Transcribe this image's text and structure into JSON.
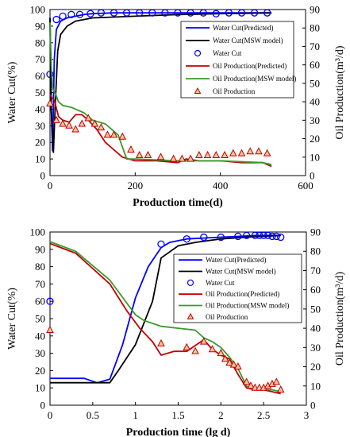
{
  "chart_data": [
    {
      "type": "line",
      "xlabel": "Production time(d)",
      "ylabel_left": "Water Cut(%)",
      "ylabel_right": "Oil Production(m³/d)",
      "xlim": [
        0,
        600
      ],
      "ylim_left": [
        0,
        100
      ],
      "ylim_right": [
        0,
        90
      ],
      "x_ticks": [
        "0",
        "200",
        "400",
        "600"
      ],
      "y_left_ticks": [
        "0",
        "10",
        "20",
        "30",
        "40",
        "50",
        "60",
        "70",
        "80",
        "90",
        "100"
      ],
      "y_right_ticks": [
        "0",
        "10",
        "20",
        "30",
        "40",
        "50",
        "60",
        "70",
        "80",
        "90"
      ],
      "legend_position": "top-right",
      "series": [
        {
          "name": "Water Cut(Predicted)",
          "axis": "left",
          "style": "line",
          "color": "#0000ff",
          "x": [
            0,
            3,
            6,
            10,
            15,
            25,
            40,
            60,
            80,
            100,
            150,
            200,
            300,
            400,
            500,
            520
          ],
          "y": [
            95,
            40,
            15,
            70,
            88,
            93,
            95,
            96,
            97,
            97.5,
            98,
            98,
            98,
            98,
            98,
            98
          ]
        },
        {
          "name": "Water Cut(MSW model)",
          "axis": "left",
          "style": "line",
          "color": "#000000",
          "x": [
            0,
            3,
            8,
            12,
            18,
            25,
            40,
            60,
            100,
            200,
            300,
            400,
            520
          ],
          "y": [
            95,
            40,
            14,
            40,
            75,
            85,
            90,
            93,
            95,
            96,
            97,
            97.5,
            98
          ]
        },
        {
          "name": "Water Cut",
          "axis": "left",
          "style": "marker-circle",
          "color": "#0000ff",
          "x": [
            0,
            15,
            30,
            50,
            70,
            95,
            120,
            150,
            180,
            210,
            240,
            270,
            300,
            330,
            360,
            390,
            420,
            450,
            480,
            510
          ],
          "y": [
            61,
            94,
            96,
            97,
            97,
            97.5,
            98,
            98,
            98,
            98,
            98,
            98,
            98,
            98,
            98,
            97.5,
            98,
            98,
            98,
            98
          ]
        },
        {
          "name": "Oil Production(Predicted)",
          "axis": "right",
          "style": "line",
          "color": "#c00000",
          "x": [
            0,
            5,
            10,
            20,
            30,
            45,
            60,
            75,
            90,
            110,
            130,
            150,
            170,
            200,
            250,
            300,
            320,
            350,
            400,
            450,
            500,
            520
          ],
          "y": [
            44,
            42,
            41,
            32,
            30,
            29,
            33,
            33,
            30,
            25,
            18,
            14,
            10,
            8,
            8,
            7,
            9,
            8,
            8,
            7,
            7,
            5
          ]
        },
        {
          "name": "Oil Production(MSW model)",
          "axis": "right",
          "style": "line",
          "color": "#3a9a2a",
          "x": [
            0,
            3,
            6,
            8,
            12,
            20,
            30,
            50,
            80,
            100,
            130,
            160,
            180,
            200,
            300,
            400,
            500,
            520
          ],
          "y": [
            83,
            60,
            48,
            46,
            45,
            40,
            38,
            37,
            34,
            30,
            28,
            22,
            9,
            9,
            8,
            8,
            7,
            6
          ]
        },
        {
          "name": "Oil Production",
          "axis": "right",
          "style": "marker-triangle",
          "color": "#c00000",
          "x": [
            0,
            15,
            30,
            45,
            60,
            75,
            90,
            105,
            120,
            135,
            150,
            170,
            190,
            210,
            230,
            260,
            290,
            310,
            330,
            350,
            370,
            390,
            410,
            430,
            450,
            470,
            490,
            510
          ],
          "y": [
            39,
            30,
            28,
            27,
            25,
            28,
            31,
            28,
            26,
            22,
            22,
            21,
            14,
            11,
            11,
            10,
            9,
            9,
            9,
            11,
            11,
            11,
            11,
            12,
            12,
            13,
            13,
            12
          ]
        }
      ]
    },
    {
      "type": "line",
      "xlabel": "Production time (lg d)",
      "ylabel_left": "Water Cut(%)",
      "ylabel_right": "Oil Production(m³/d)",
      "xlim": [
        0,
        3
      ],
      "ylim_left": [
        0,
        100
      ],
      "ylim_right": [
        0,
        90
      ],
      "x_ticks": [
        "0",
        "0.5",
        "1",
        "1.5",
        "2",
        "2.5",
        "3"
      ],
      "y_left_ticks": [
        "0",
        "10",
        "20",
        "30",
        "40",
        "50",
        "60",
        "70",
        "80",
        "90",
        "100"
      ],
      "y_right_ticks": [
        "0",
        "10",
        "20",
        "30",
        "40",
        "50",
        "60",
        "70",
        "80",
        "90"
      ],
      "legend_position": "right",
      "series": [
        {
          "name": "Water Cut(Predicted)",
          "axis": "left",
          "style": "line",
          "color": "#0000ff",
          "x": [
            0,
            0.4,
            0.55,
            0.7,
            0.85,
            1.0,
            1.15,
            1.3,
            1.4,
            1.6,
            1.8,
            2.0,
            2.2,
            2.4,
            2.5,
            2.6,
            2.7
          ],
          "y": [
            15.5,
            15.5,
            13,
            15,
            35,
            62,
            80,
            91,
            94,
            96,
            96.5,
            97,
            97.5,
            98,
            98,
            98,
            98
          ]
        },
        {
          "name": "Water Cut(MSW model)",
          "axis": "left",
          "style": "line",
          "color": "#000000",
          "x": [
            0,
            0.7,
            0.8,
            1.0,
            1.2,
            1.3,
            1.5,
            1.7,
            2.0,
            2.3,
            2.5,
            2.7
          ],
          "y": [
            13,
            13,
            20,
            35,
            60,
            85,
            92,
            94,
            96,
            97,
            97.5,
            98
          ]
        },
        {
          "name": "Water Cut",
          "axis": "left",
          "style": "marker-circle",
          "color": "#0000ff",
          "x": [
            0,
            1.3,
            1.6,
            1.8,
            2.0,
            2.2,
            2.3,
            2.4,
            2.45,
            2.5,
            2.55,
            2.6,
            2.65,
            2.7
          ],
          "y": [
            60,
            93,
            96,
            97,
            97,
            97.5,
            98,
            98,
            98,
            98,
            98,
            97.5,
            97.5,
            97
          ]
        },
        {
          "name": "Oil Production(Predicted)",
          "axis": "right",
          "style": "line",
          "color": "#c00000",
          "x": [
            0,
            0.3,
            0.7,
            0.9,
            1.05,
            1.2,
            1.3,
            1.45,
            1.6,
            1.7,
            1.8,
            1.9,
            2.0,
            2.1,
            2.2,
            2.3,
            2.4,
            2.5,
            2.6,
            2.7
          ],
          "y": [
            84,
            79,
            63,
            49,
            40,
            33,
            26,
            28,
            28,
            31,
            34,
            29,
            26,
            24,
            16,
            9,
            8,
            8,
            7,
            6
          ]
        },
        {
          "name": "Oil Production(MSW model)",
          "axis": "right",
          "style": "line",
          "color": "#3a9a2a",
          "x": [
            0,
            0.3,
            0.7,
            0.9,
            1.0,
            1.1,
            1.3,
            1.5,
            1.7,
            1.8,
            1.9,
            2.0,
            2.1,
            2.2,
            2.3,
            2.4,
            2.5,
            2.6,
            2.7
          ],
          "y": [
            85,
            80,
            65,
            53,
            47,
            44,
            41,
            40,
            39,
            35,
            33,
            30,
            25,
            19,
            10,
            8,
            8,
            8,
            7
          ]
        },
        {
          "name": "Oil Production",
          "axis": "right",
          "style": "marker-triangle",
          "color": "#c00000",
          "x": [
            0,
            1.3,
            1.6,
            1.7,
            1.8,
            1.9,
            2.0,
            2.05,
            2.1,
            2.15,
            2.2,
            2.3,
            2.35,
            2.4,
            2.45,
            2.5,
            2.55,
            2.6,
            2.65,
            2.7
          ],
          "y": [
            39,
            32,
            30,
            28,
            33,
            29,
            27,
            24,
            22,
            21,
            20,
            12,
            10,
            9,
            9,
            9,
            10,
            11,
            12,
            8
          ]
        }
      ]
    }
  ]
}
